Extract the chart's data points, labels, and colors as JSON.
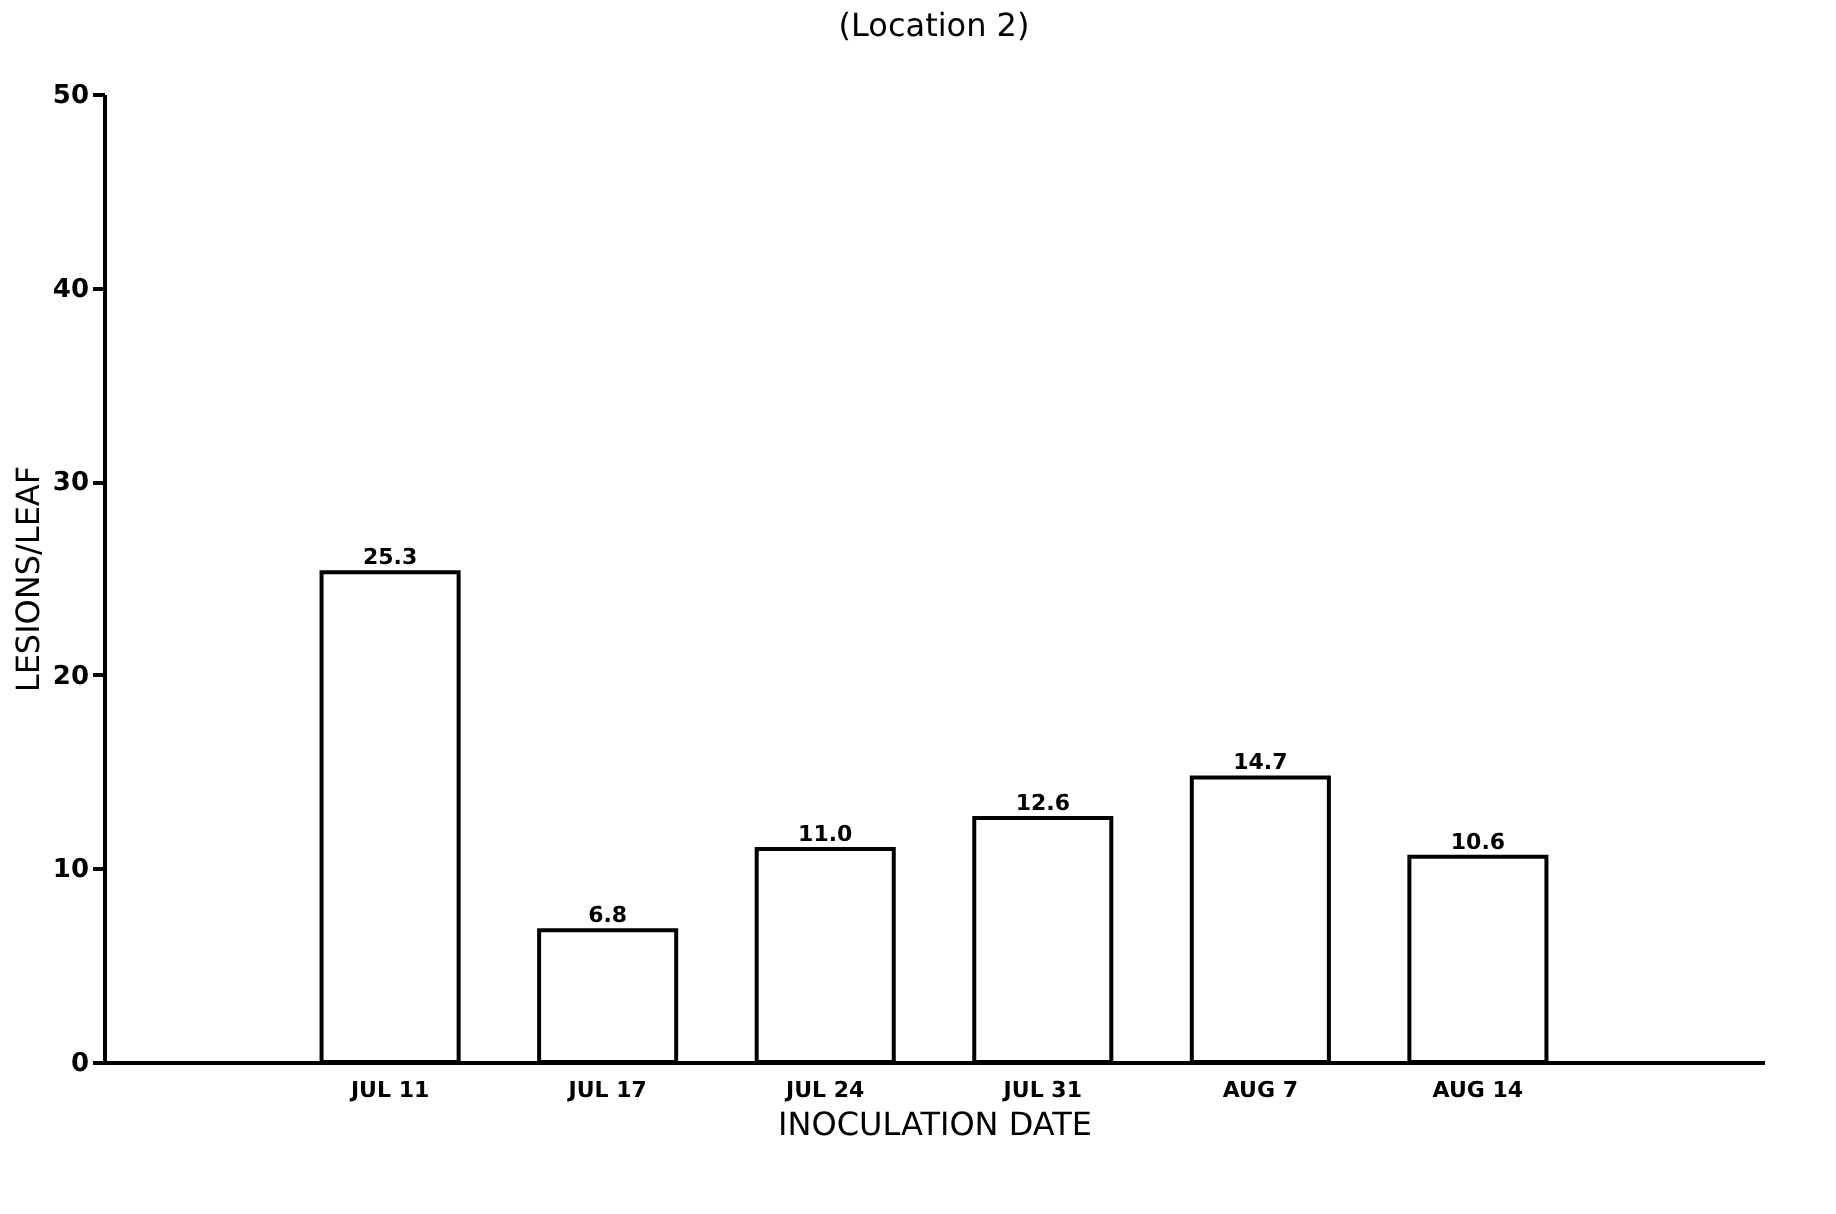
{
  "chart_data": {
    "type": "bar",
    "title": "(Location 2)",
    "xlabel": "INOCULATION DATE",
    "ylabel": "LESIONS/LEAF",
    "categories": [
      "JUL 11",
      "JUL 17",
      "JUL 24",
      "JUL 31",
      "AUG 7",
      "AUG 14"
    ],
    "values": [
      25.3,
      6.8,
      11.0,
      12.6,
      14.7,
      10.6
    ],
    "value_labels": [
      "25.3",
      "6.8",
      "11.0",
      "12.6",
      "14.7",
      "10.6"
    ],
    "color": "#ffffff",
    "ylim": [
      0,
      50
    ],
    "yticks": [
      0,
      10,
      20,
      30,
      40,
      50
    ],
    "grid": false
  }
}
